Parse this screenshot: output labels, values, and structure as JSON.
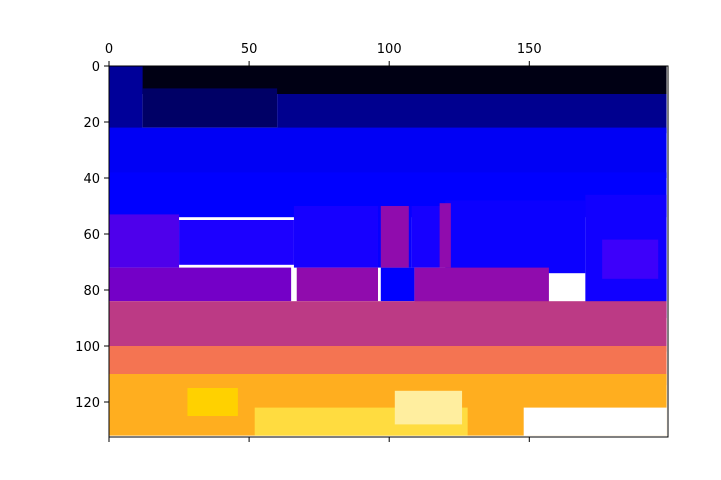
{
  "chart_data": {
    "type": "heatmap",
    "title": "",
    "xlabel": "",
    "ylabel": "",
    "colormap": "gnuplot2",
    "xlim": [
      0,
      199
    ],
    "ylim": [
      132,
      0
    ],
    "x_axis_position": "top",
    "grid": false,
    "x_ticks": [
      0,
      50,
      100,
      150
    ],
    "y_ticks": [
      0,
      20,
      40,
      60,
      80,
      100,
      120
    ],
    "x_tick_labels": [
      "0",
      "50",
      "100",
      "150"
    ],
    "y_tick_labels": [
      "0",
      "20",
      "40",
      "60",
      "80",
      "100",
      "120"
    ],
    "regions": [
      {
        "x": [
          0,
          199
        ],
        "y": [
          0,
          10
        ],
        "level": 0.02
      },
      {
        "x": [
          0,
          12
        ],
        "y": [
          0,
          32
        ],
        "level": 0.15
      },
      {
        "x": [
          12,
          60
        ],
        "y": [
          8,
          22
        ],
        "level": 0.1
      },
      {
        "x": [
          60,
          199
        ],
        "y": [
          10,
          24
        ],
        "level": 0.14
      },
      {
        "x": [
          0,
          199
        ],
        "y": [
          22,
          40
        ],
        "level": 0.24
      },
      {
        "x": [
          0,
          199
        ],
        "y": [
          38,
          54
        ],
        "level": 0.3
      },
      {
        "x": [
          0,
          25
        ],
        "y": [
          53,
          72
        ],
        "level": 0.46
      },
      {
        "x": [
          25,
          66
        ],
        "y": [
          55,
          71
        ],
        "level": 0.37
      },
      {
        "x": [
          66,
          96
        ],
        "y": [
          50,
          72
        ],
        "level": 0.36
      },
      {
        "x": [
          96,
          108
        ],
        "y": [
          50,
          72
        ],
        "level": 0.33
      },
      {
        "x": [
          108,
          120
        ],
        "y": [
          50,
          72
        ],
        "level": 0.36
      },
      {
        "x": [
          120,
          170
        ],
        "y": [
          48,
          74
        ],
        "level": 0.34
      },
      {
        "x": [
          170,
          199
        ],
        "y": [
          46,
          90
        ],
        "level": 0.35
      },
      {
        "x": [
          176,
          196
        ],
        "y": [
          62,
          76
        ],
        "level": 0.43
      },
      {
        "x": [
          0,
          65
        ],
        "y": [
          72,
          84
        ],
        "level": 0.53
      },
      {
        "x": [
          67,
          96
        ],
        "y": [
          72,
          84
        ],
        "level": 0.58
      },
      {
        "x": [
          97,
          109
        ],
        "y": [
          72,
          84
        ],
        "level": 0.31
      },
      {
        "x": [
          109,
          157
        ],
        "y": [
          72,
          90
        ],
        "level": 0.58
      },
      {
        "x": [
          97,
          107
        ],
        "y": [
          50,
          72
        ],
        "level": 0.58
      },
      {
        "x": [
          118,
          122
        ],
        "y": [
          49,
          72
        ],
        "level": 0.58
      },
      {
        "x": [
          0,
          199
        ],
        "y": [
          84,
          102
        ],
        "level": 0.66
      },
      {
        "x": [
          0,
          199
        ],
        "y": [
          100,
          114
        ],
        "level": 0.76
      },
      {
        "x": [
          0,
          199
        ],
        "y": [
          110,
          132
        ],
        "level": 0.86
      },
      {
        "x": [
          28,
          46
        ],
        "y": [
          115,
          125
        ],
        "level": 0.92
      },
      {
        "x": [
          52,
          128
        ],
        "y": [
          122,
          132
        ],
        "level": 0.94
      },
      {
        "x": [
          102,
          126
        ],
        "y": [
          116,
          128
        ],
        "level": 0.97
      },
      {
        "x": [
          148,
          199
        ],
        "y": [
          122,
          132
        ],
        "level": 1.0
      }
    ]
  }
}
